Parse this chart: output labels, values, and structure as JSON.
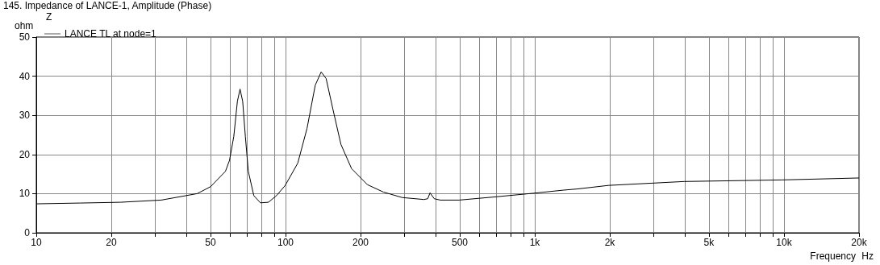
{
  "chart_data": {
    "type": "line",
    "title": "145. Impedance of LANCE-1, Amplitude (Phase)",
    "ylabel": "ohm",
    "xlabel": "Frequency",
    "legend_title": "Z",
    "annotations": [
      "Hz"
    ],
    "x": [
      10,
      15,
      21.8,
      31.7,
      44.2,
      50.1,
      57.4,
      59.6,
      62,
      64.1,
      65.7,
      67.3,
      69,
      70.9,
      74.6,
      79.3,
      85.4,
      92,
      99.7,
      112,
      122,
      131.6,
      139,
      145.5,
      155,
      166.8,
      184,
      213,
      247,
      294,
      359,
      372,
      380,
      395,
      418,
      497,
      702,
      987,
      1306,
      1485,
      1972,
      3975,
      9800,
      20000
    ],
    "series": [
      {
        "name": "LANCE TL at node=1",
        "color": "#000000",
        "values": [
          7.4,
          7.6,
          7.8,
          8.35,
          10.0,
          11.8,
          15.7,
          18.5,
          24.6,
          33.6,
          36.7,
          33.6,
          24.6,
          15.7,
          9.5,
          7.65,
          7.8,
          9.5,
          12.1,
          17.8,
          26.7,
          37.7,
          41.1,
          39.4,
          31.5,
          22.6,
          16.4,
          12.3,
          10.4,
          9.0,
          8.5,
          8.7,
          10.2,
          8.7,
          8.35,
          8.35,
          9.2,
          10.1,
          10.9,
          11.2,
          12.1,
          13.1,
          13.5,
          14.0
        ]
      }
    ],
    "log": "x",
    "xlim": [
      10,
      20000
    ],
    "xticks": [
      10,
      20,
      {
        "value": 30,
        "label": null
      },
      {
        "value": 40,
        "label": null
      },
      50,
      {
        "value": 60,
        "label": null
      },
      {
        "value": 70,
        "label": null
      },
      {
        "value": 80,
        "label": null
      },
      {
        "value": 90,
        "label": null
      },
      100,
      200,
      {
        "value": 300,
        "label": null
      },
      {
        "value": 400,
        "label": null
      },
      500,
      {
        "value": 600,
        "label": null
      },
      {
        "value": 700,
        "label": null
      },
      {
        "value": 800,
        "label": null
      },
      {
        "value": 900,
        "label": null
      },
      {
        "value": 1000,
        "label": "1k"
      },
      {
        "value": 2000,
        "label": "2k"
      },
      {
        "value": 3000,
        "label": null
      },
      {
        "value": 4000,
        "label": null
      },
      {
        "value": 5000,
        "label": "5k"
      },
      {
        "value": 6000,
        "label": null
      },
      {
        "value": 7000,
        "label": null
      },
      {
        "value": 8000,
        "label": null
      },
      {
        "value": 9000,
        "label": null
      },
      {
        "value": 10000,
        "label": "10k"
      },
      {
        "value": 20000,
        "label": "20k"
      }
    ],
    "ylim": [
      0,
      50
    ],
    "yticks": [
      0,
      10,
      20,
      30,
      40,
      50
    ],
    "grid": true,
    "legend": "top left",
    "marker": "none",
    "line_style": "solid"
  }
}
